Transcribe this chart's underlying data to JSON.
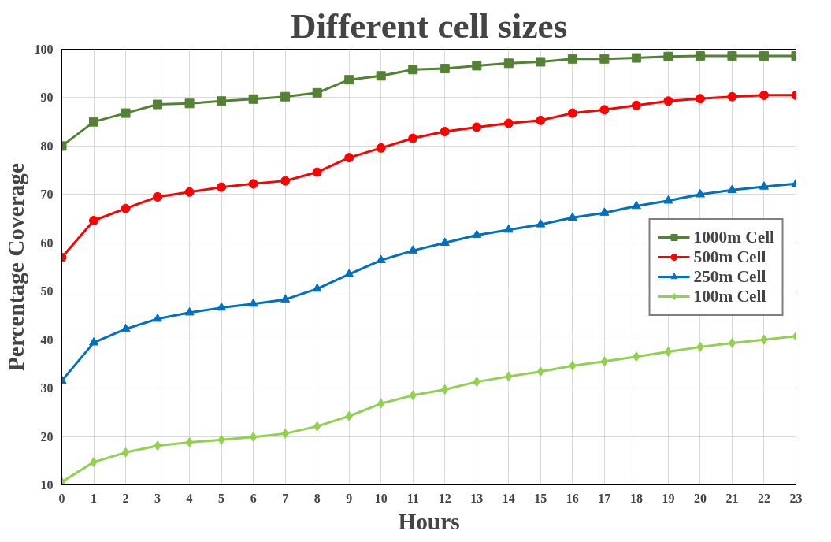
{
  "chart_data": {
    "type": "line",
    "title": "Different cell sizes",
    "xlabel": "Hours",
    "ylabel": "Percentage Coverage",
    "x": [
      0,
      1,
      2,
      3,
      4,
      5,
      6,
      7,
      8,
      9,
      10,
      11,
      12,
      13,
      14,
      15,
      16,
      17,
      18,
      19,
      20,
      21,
      22,
      23
    ],
    "xlim": [
      0,
      23
    ],
    "xticks": [
      0,
      1,
      2,
      3,
      4,
      5,
      6,
      7,
      8,
      9,
      10,
      11,
      12,
      13,
      14,
      15,
      16,
      17,
      18,
      19,
      20,
      21,
      22,
      23
    ],
    "ylim": [
      10,
      100
    ],
    "yticks": [
      10,
      20,
      30,
      40,
      50,
      60,
      70,
      80,
      90,
      100
    ],
    "grid": true,
    "legend": "right",
    "line_style": "solid",
    "series": [
      {
        "name": "1000m Cell",
        "color": "#548235",
        "marker": "square",
        "values": [
          80,
          85,
          86.8,
          88.6,
          88.8,
          89.3,
          89.7,
          90.2,
          91,
          93.7,
          94.5,
          95.8,
          96,
          96.6,
          97.1,
          97.4,
          98,
          98,
          98.2,
          98.5,
          98.6,
          98.6,
          98.6,
          98.6
        ]
      },
      {
        "name": "500m Cell",
        "color": "#ff0000",
        "marker": "circle",
        "values": [
          57,
          64.6,
          67.1,
          69.5,
          70.5,
          71.5,
          72.2,
          72.8,
          74.6,
          77.6,
          79.6,
          81.6,
          83,
          83.9,
          84.7,
          85.3,
          86.8,
          87.5,
          88.4,
          89.3,
          89.8,
          90.2,
          90.5,
          90.5
        ]
      },
      {
        "name": "250m Cell",
        "color": "#0070c0",
        "marker": "triangle",
        "values": [
          31.5,
          39.4,
          42.2,
          44.3,
          45.6,
          46.6,
          47.4,
          48.3,
          50.5,
          53.5,
          56.4,
          58.4,
          60,
          61.6,
          62.7,
          63.8,
          65.2,
          66.2,
          67.6,
          68.7,
          70,
          70.9,
          71.6,
          72.2
        ]
      },
      {
        "name": "100m Cell",
        "color": "#92d050",
        "marker": "diamond",
        "values": [
          10.6,
          14.7,
          16.7,
          18.1,
          18.8,
          19.3,
          19.9,
          20.6,
          22.1,
          24.2,
          26.8,
          28.5,
          29.7,
          31.3,
          32.4,
          33.4,
          34.6,
          35.5,
          36.5,
          37.5,
          38.5,
          39.3,
          40,
          40.7
        ]
      }
    ]
  }
}
